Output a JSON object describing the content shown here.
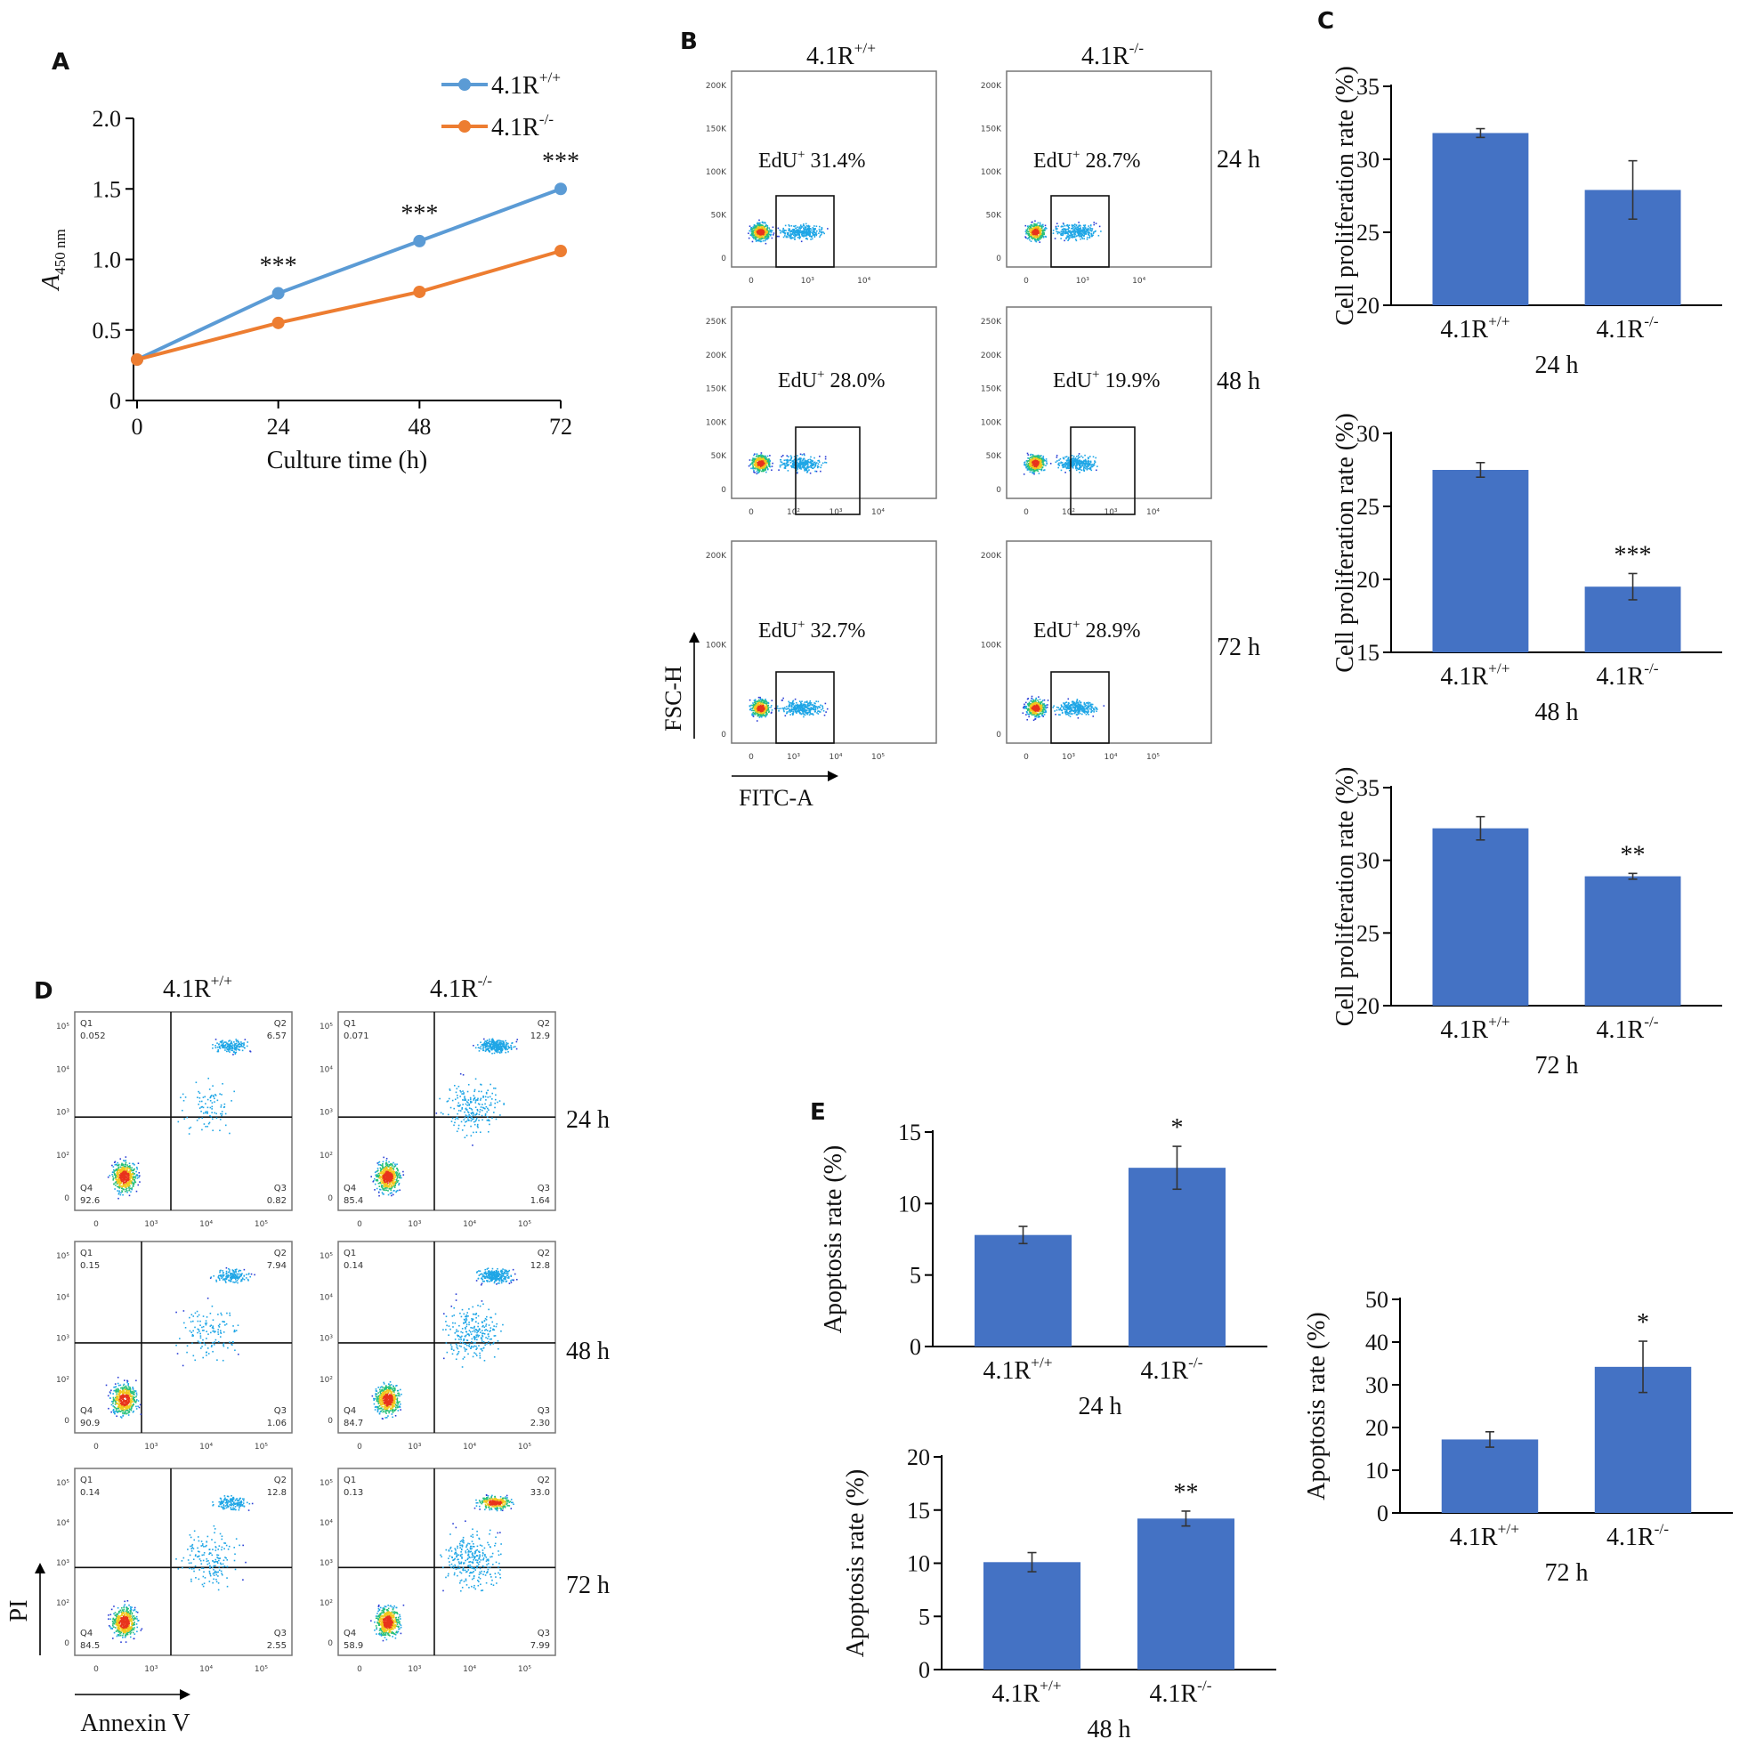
{
  "panels": {
    "A": "A",
    "B": "B",
    "C": "C",
    "D": "D",
    "E": "E"
  },
  "genotypes": {
    "wt_base": "4.1R",
    "wt_sup": "+/+",
    "ko_base": "4.1R",
    "ko_sup": "-/-"
  },
  "timepoints": [
    "24 h",
    "48 h",
    "72 h"
  ],
  "colors": {
    "wt_line": "#5b9bd5",
    "ko_line": "#ed7d31",
    "bar": "#4472c4"
  },
  "chart_data": [
    {
      "id": "A",
      "type": "line",
      "xlabel": "Culture time (h)",
      "ylabel_base": "A",
      "ylabel_sub": "450 nm",
      "x": [
        0,
        24,
        48,
        72
      ],
      "xticks": [
        "0",
        "24",
        "48",
        "72"
      ],
      "yticks": [
        "0",
        "0.5",
        "1.0",
        "1.5",
        "2.0"
      ],
      "ylim": [
        0,
        2.0
      ],
      "legend_position": "top-right",
      "series": [
        {
          "name": "4.1R+/+",
          "values": [
            0.29,
            0.76,
            1.13,
            1.5
          ]
        },
        {
          "name": "4.1R-/-",
          "values": [
            0.29,
            0.55,
            0.77,
            1.06
          ]
        }
      ],
      "annotations": [
        "",
        "***",
        "***",
        "***"
      ]
    },
    {
      "id": "C-24h",
      "type": "bar",
      "ylabel": "Cell proliferation rate (%)",
      "xlabel": "24 h",
      "categories": [
        "4.1R+/+",
        "4.1R-/-"
      ],
      "values": [
        31.8,
        27.9
      ],
      "errors": [
        0.3,
        2.0
      ],
      "ylim": [
        20,
        35
      ],
      "yticks": [
        "20",
        "25",
        "30",
        "35"
      ],
      "annotations": [
        "",
        ""
      ]
    },
    {
      "id": "C-48h",
      "type": "bar",
      "ylabel": "Cell proliferation rate (%)",
      "xlabel": "48 h",
      "categories": [
        "4.1R+/+",
        "4.1R-/-"
      ],
      "values": [
        27.5,
        19.5
      ],
      "errors": [
        0.5,
        0.9
      ],
      "ylim": [
        15,
        30
      ],
      "yticks": [
        "15",
        "20",
        "25",
        "30"
      ],
      "annotations": [
        "",
        "***"
      ]
    },
    {
      "id": "C-72h",
      "type": "bar",
      "ylabel": "Cell proliferation rate (%)",
      "xlabel": "72 h",
      "categories": [
        "4.1R+/+",
        "4.1R-/-"
      ],
      "values": [
        32.2,
        28.9
      ],
      "errors": [
        0.8,
        0.2
      ],
      "ylim": [
        20,
        35
      ],
      "yticks": [
        "20",
        "25",
        "30",
        "35"
      ],
      "annotations": [
        "",
        "**"
      ]
    },
    {
      "id": "E-24h",
      "type": "bar",
      "ylabel": "Apoptosis rate (%)",
      "xlabel": "24 h",
      "categories": [
        "4.1R+/+",
        "4.1R-/-"
      ],
      "values": [
        7.8,
        12.5
      ],
      "errors": [
        0.6,
        1.5
      ],
      "ylim": [
        0,
        15
      ],
      "yticks": [
        "0",
        "5",
        "10",
        "15"
      ],
      "annotations": [
        "",
        "*"
      ]
    },
    {
      "id": "E-48h",
      "type": "bar",
      "ylabel": "Apoptosis rate (%)",
      "xlabel": "48 h",
      "categories": [
        "4.1R+/+",
        "4.1R-/-"
      ],
      "values": [
        10.1,
        14.2
      ],
      "errors": [
        0.9,
        0.7
      ],
      "ylim": [
        0,
        20
      ],
      "yticks": [
        "0",
        "5",
        "10",
        "15",
        "20"
      ],
      "annotations": [
        "",
        "**"
      ]
    },
    {
      "id": "E-72h",
      "type": "bar",
      "ylabel": "Apoptosis rate (%)",
      "xlabel": "72 h",
      "categories": [
        "4.1R+/+",
        "4.1R-/-"
      ],
      "values": [
        17.2,
        34.2
      ],
      "errors": [
        1.8,
        6.0
      ],
      "ylim": [
        0,
        50
      ],
      "yticks": [
        "0",
        "10",
        "20",
        "30",
        "40",
        "50"
      ],
      "annotations": [
        "",
        "*"
      ]
    }
  ],
  "flow_edu": {
    "gate_prefix": "EdU",
    "gate_sup": "+",
    "y_axis": "FSC-H",
    "x_axis": "FITC-A",
    "rows": [
      {
        "time": "24 h",
        "wt": "31.4%",
        "ko": "28.7%",
        "yticks": [
          "200K",
          "150K",
          "100K",
          "50K",
          "0"
        ],
        "xticks": [
          "0",
          "10³",
          "10⁴"
        ]
      },
      {
        "time": "48 h",
        "wt": "28.0%",
        "ko": "19.9%",
        "yticks": [
          "250K",
          "200K",
          "150K",
          "100K",
          "50K",
          "0"
        ],
        "xticks": [
          "0",
          "10²",
          "10³",
          "10⁴"
        ]
      },
      {
        "time": "72 h",
        "wt": "32.7%",
        "ko": "28.9%",
        "yticks": [
          "200K",
          "100K",
          "0"
        ],
        "xticks": [
          "0",
          "10³",
          "10⁴",
          "10⁵"
        ]
      }
    ]
  },
  "flow_apoptosis": {
    "y_axis": "PI",
    "x_axis": "Annexin V",
    "quadrants": [
      "Q1",
      "Q2",
      "Q3",
      "Q4"
    ],
    "yticks": [
      "10⁵",
      "10⁴",
      "10³",
      "10²",
      "0"
    ],
    "xticks": [
      "0",
      "10³",
      "10⁴",
      "10⁵"
    ],
    "rows": [
      {
        "time": "24 h",
        "wt": {
          "Q1": "0.052",
          "Q2": "6.57",
          "Q3": "0.82",
          "Q4": "92.6"
        },
        "ko": {
          "Q1": "0.071",
          "Q2": "12.9",
          "Q3": "1.64",
          "Q4": "85.4"
        }
      },
      {
        "time": "48 h",
        "wt": {
          "Q1": "0.15",
          "Q2": "7.94",
          "Q3": "1.06",
          "Q4": "90.9"
        },
        "ko": {
          "Q1": "0.14",
          "Q2": "12.8",
          "Q3": "2.30",
          "Q4": "84.7"
        }
      },
      {
        "time": "72 h",
        "wt": {
          "Q1": "0.14",
          "Q2": "12.8",
          "Q3": "2.55",
          "Q4": "84.5"
        },
        "ko": {
          "Q1": "0.13",
          "Q2": "33.0",
          "Q3": "7.99",
          "Q4": "58.9"
        }
      }
    ]
  }
}
